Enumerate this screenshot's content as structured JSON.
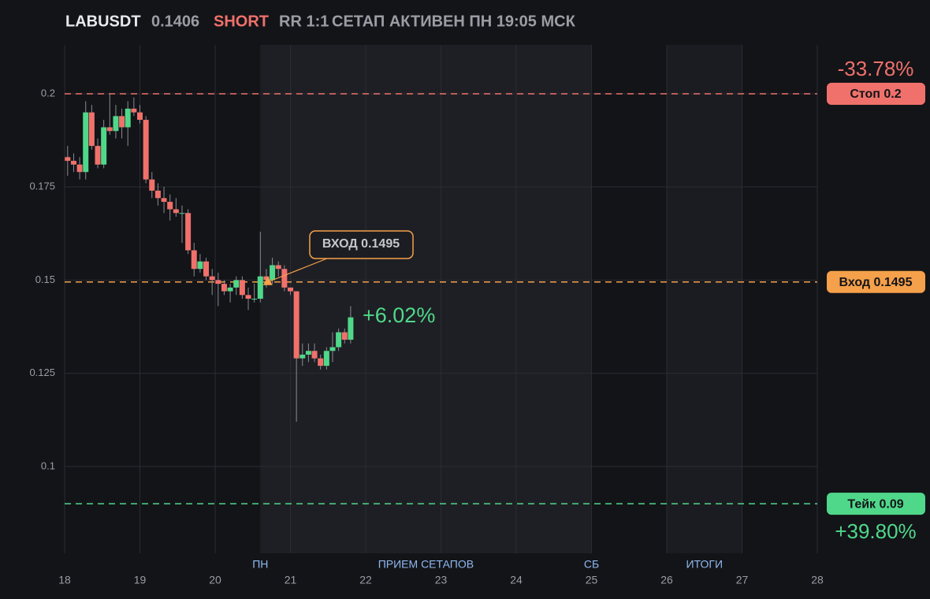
{
  "chart_data": {
    "type": "candlestick",
    "header": {
      "symbol": "LABUSDT",
      "price": "0.1406",
      "side": "SHORT",
      "rr": "RR 1:1",
      "status": "СЕТАП АКТИВЕН ПН 19:05 МСК"
    },
    "xlim": [
      18,
      28
    ],
    "xticks": [
      18,
      19,
      20,
      21,
      22,
      23,
      24,
      25,
      26,
      27,
      28
    ],
    "ylim": [
      0.0767,
      0.2131
    ],
    "yticks": [
      0.1,
      0.125,
      0.15,
      0.175,
      0.2
    ],
    "grid": true,
    "up_color": "#4fd88a",
    "down_color": "#f0716b",
    "x": [
      18.04,
      18.12,
      18.2,
      18.28,
      18.36,
      18.44,
      18.52,
      18.6,
      18.68,
      18.76,
      18.84,
      18.92,
      19,
      19.08,
      19.16,
      19.24,
      19.32,
      19.4,
      19.48,
      19.56,
      19.64,
      19.72,
      19.8,
      19.88,
      19.96,
      20.04,
      20.12,
      20.2,
      20.28,
      20.36,
      20.44,
      20.52,
      20.6,
      20.68,
      20.76,
      20.84,
      20.92,
      21,
      21.08,
      21.16,
      21.24,
      21.32,
      21.4,
      21.48,
      21.56,
      21.64,
      21.72,
      21.8
    ],
    "open": [
      0.183,
      0.182,
      0.181,
      0.179,
      0.195,
      0.186,
      0.181,
      0.191,
      0.19,
      0.194,
      0.191,
      0.196,
      0.195,
      0.193,
      0.177,
      0.174,
      0.172,
      0.171,
      0.169,
      0.168,
      0.168,
      0.158,
      0.153,
      0.155,
      0.151,
      0.15,
      0.149,
      0.147,
      0.148,
      0.15,
      0.146,
      0.145,
      0.145,
      0.151,
      0.15,
      0.154,
      0.153,
      0.148,
      0.147,
      0.129,
      0.13,
      0.131,
      0.129,
      0.127,
      0.131,
      0.132,
      0.136,
      0.134
    ],
    "high": [
      0.186,
      0.184,
      0.183,
      0.198,
      0.197,
      0.188,
      0.193,
      0.2,
      0.197,
      0.196,
      0.198,
      0.199,
      0.197,
      0.194,
      0.179,
      0.176,
      0.175,
      0.173,
      0.172,
      0.17,
      0.169,
      0.16,
      0.157,
      0.156,
      0.153,
      0.152,
      0.15,
      0.149,
      0.151,
      0.151,
      0.148,
      0.149,
      0.163,
      0.153,
      0.156,
      0.155,
      0.154,
      0.148,
      0.147,
      0.133,
      0.133,
      0.133,
      0.13,
      0.132,
      0.136,
      0.137,
      0.137,
      0.143
    ],
    "low": [
      0.178,
      0.179,
      0.177,
      0.177,
      0.185,
      0.18,
      0.18,
      0.189,
      0.188,
      0.188,
      0.186,
      0.194,
      0.192,
      0.176,
      0.172,
      0.17,
      0.168,
      0.166,
      0.167,
      0.16,
      0.157,
      0.151,
      0.152,
      0.15,
      0.146,
      0.143,
      0.146,
      0.144,
      0.146,
      0.145,
      0.142,
      0.144,
      0.144,
      0.148,
      0.149,
      0.151,
      0.147,
      0.146,
      0.112,
      0.127,
      0.128,
      0.128,
      0.126,
      0.126,
      0.128,
      0.131,
      0.133,
      0.133
    ],
    "close": [
      0.182,
      0.181,
      0.179,
      0.195,
      0.186,
      0.181,
      0.191,
      0.19,
      0.194,
      0.191,
      0.196,
      0.195,
      0.193,
      0.177,
      0.174,
      0.172,
      0.171,
      0.169,
      0.168,
      0.168,
      0.158,
      0.153,
      0.155,
      0.151,
      0.15,
      0.149,
      0.147,
      0.148,
      0.15,
      0.146,
      0.145,
      0.145,
      0.151,
      0.15,
      0.154,
      0.153,
      0.148,
      0.147,
      0.129,
      0.13,
      0.131,
      0.129,
      0.127,
      0.131,
      0.132,
      0.136,
      0.134,
      0.14
    ],
    "levels": [
      {
        "value": 0.2,
        "label": "Стоп 0.2",
        "color": "#f0716b",
        "change": "-33.78%"
      },
      {
        "value": 0.1495,
        "label": "Вход 0.1495",
        "color": "#f5a04a"
      },
      {
        "value": 0.09,
        "label": "Тейк 0.09",
        "color": "#4fd88a",
        "change": "+39.80%"
      }
    ],
    "shaded": [
      [
        20.6,
        25
      ],
      [
        26,
        27
      ]
    ],
    "sessions": [
      {
        "x": 20.6,
        "label": "ПН"
      },
      {
        "x": 22.8,
        "label": "ПРИЕМ СЕТАПОВ"
      },
      {
        "x": 25,
        "label": "СБ"
      },
      {
        "x": 26.5,
        "label": "ИТОГИ"
      }
    ],
    "entry_marker": {
      "x": 20.7,
      "y": 0.1495,
      "label": "ВХОД 0.1495"
    },
    "change_label": "+6.02%"
  }
}
